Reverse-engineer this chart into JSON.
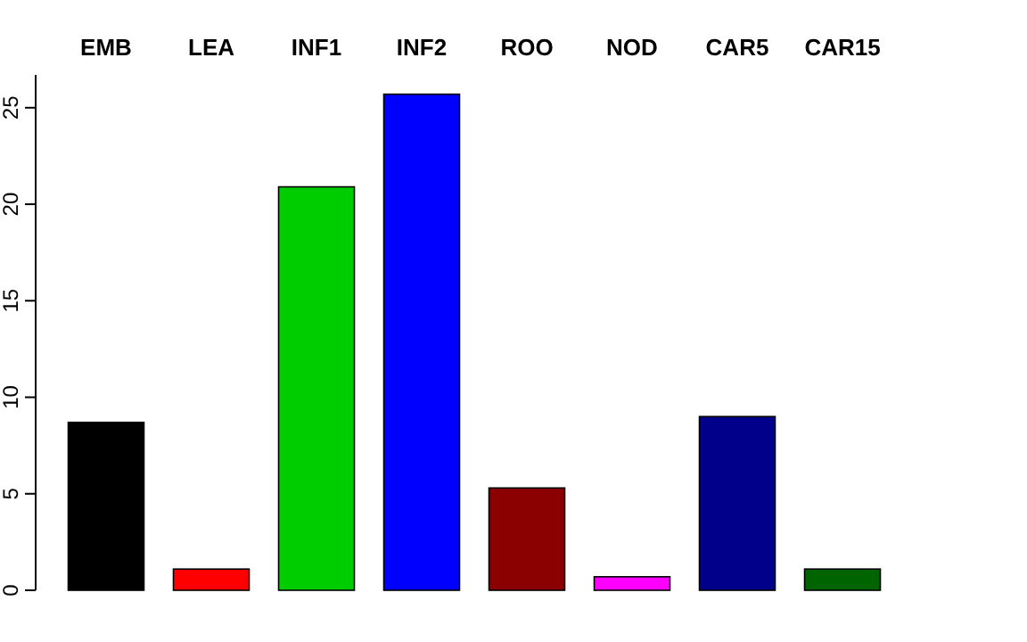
{
  "chart_data": {
    "type": "bar",
    "categories": [
      "EMB",
      "LEA",
      "INF1",
      "INF2",
      "ROO",
      "NOD",
      "CAR5",
      "CAR15"
    ],
    "values": [
      8.7,
      1.1,
      20.9,
      25.7,
      5.3,
      0.7,
      9.0,
      1.1
    ],
    "colors": [
      "#000000",
      "#ff0000",
      "#00cd00",
      "#0000ff",
      "#8b0000",
      "#ff00ff",
      "#00008b",
      "#006400"
    ],
    "ylim": [
      0,
      26.7
    ],
    "yticks": [
      0,
      5,
      10,
      15,
      20,
      25
    ],
    "grid": false
  }
}
